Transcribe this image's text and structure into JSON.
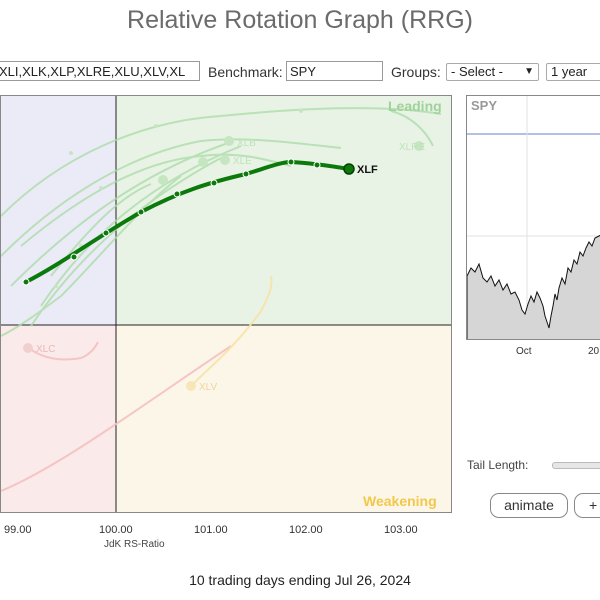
{
  "title": "Relative Rotation Graph (RRG)",
  "toolbar": {
    "symbols_value": "XLI,XLK,XLP,XLRE,XLU,XLV,XL",
    "benchmark_label": "Benchmark:",
    "benchmark_value": "SPY",
    "groups_label": "Groups:",
    "groups_selected": "- Select -",
    "period_selected": "1 year"
  },
  "quadrants": {
    "leading": "Leading",
    "weakening": "Weakening"
  },
  "x_axis": {
    "ticks": [
      "99.00",
      "100.00",
      "101.00",
      "102.00",
      "103.00"
    ],
    "label": "JdK RS-Ratio"
  },
  "symbols": {
    "xlf": "XLF",
    "xlb": "XLB",
    "xlre": "XLRE",
    "xlc": "XLC",
    "xlv": "XLV",
    "xle": "XLE"
  },
  "benchmark_panel": {
    "label": "SPY",
    "ticks": [
      "Oct",
      "20"
    ]
  },
  "controls": {
    "tail_length_label": "Tail Length:",
    "animate_label": "animate",
    "plus_label": "+"
  },
  "footer": "10 trading days ending Jul 26, 2024",
  "colors": {
    "leading_bg": "#e8f3e6",
    "weakening_bg": "#fbf6e8",
    "lagging_bg": "#fbeaea",
    "improving_bg": "#ebebf7",
    "xlf_tail": "#0b7a0b",
    "leading_text": "#9fd29a",
    "weakening_text": "#f2c84b"
  }
}
